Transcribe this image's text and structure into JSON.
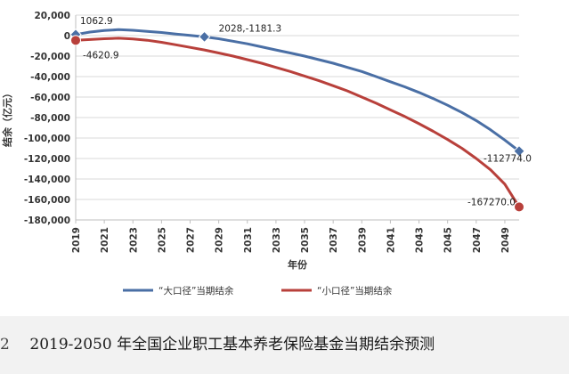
{
  "chart_data": {
    "type": "line",
    "xlabel": "年份",
    "ylabel": "结余（亿元）",
    "xlim": [
      2019,
      2050
    ],
    "ylim": [
      -180000,
      20000
    ],
    "yticks": [
      20000,
      0,
      -20000,
      -40000,
      -60000,
      -80000,
      -100000,
      -120000,
      -140000,
      -160000,
      -180000
    ],
    "ytick_labels": [
      "20,000",
      "0",
      "-20,000",
      "-40,000",
      "-60,000",
      "-80,000",
      "-100,000",
      "-120,000",
      "-140,000",
      "-160,000",
      "-180,000"
    ],
    "xticks": [
      2019,
      2021,
      2023,
      2025,
      2027,
      2029,
      2031,
      2033,
      2035,
      2037,
      2039,
      2041,
      2043,
      2045,
      2047,
      2049
    ],
    "xtick_labels": [
      "2019",
      "2021",
      "2023",
      "2025",
      "2027",
      "2029",
      "2031",
      "2033",
      "2035",
      "2037",
      "2039",
      "2041",
      "2043",
      "2045",
      "2047",
      "2049"
    ],
    "grid": true,
    "legend_position": "bottom",
    "series": [
      {
        "name": "“大口径”当期结余",
        "color": "#4a6fa5",
        "x": [
          2019,
          2020,
          2021,
          2022,
          2023,
          2024,
          2025,
          2026,
          2027,
          2028,
          2029,
          2030,
          2031,
          2032,
          2033,
          2034,
          2035,
          2036,
          2037,
          2038,
          2039,
          2040,
          2041,
          2042,
          2043,
          2044,
          2045,
          2046,
          2047,
          2048,
          2049,
          2050
        ],
        "values": [
          1062.9,
          3500,
          5000,
          5800,
          5200,
          4200,
          3000,
          1500,
          200,
          -1181.3,
          -3000,
          -5500,
          -8000,
          -11000,
          -14000,
          -17000,
          -20000,
          -23500,
          -27000,
          -31000,
          -35000,
          -40000,
          -45000,
          -50000,
          -55500,
          -61500,
          -68000,
          -75000,
          -83000,
          -92000,
          -102000,
          -112774.0
        ]
      },
      {
        "name": "“小口径”当期结余",
        "color": "#b8403b",
        "x": [
          2019,
          2020,
          2021,
          2022,
          2023,
          2024,
          2025,
          2026,
          2027,
          2028,
          2029,
          2030,
          2031,
          2032,
          2033,
          2034,
          2035,
          2036,
          2037,
          2038,
          2039,
          2040,
          2041,
          2042,
          2043,
          2044,
          2045,
          2046,
          2047,
          2048,
          2049,
          2050
        ],
        "values": [
          -4620.9,
          -3800,
          -3000,
          -2500,
          -3200,
          -4500,
          -6500,
          -9000,
          -11500,
          -14000,
          -17000,
          -20000,
          -23500,
          -27000,
          -31000,
          -35000,
          -39500,
          -44000,
          -49000,
          -54000,
          -60000,
          -66000,
          -72500,
          -79000,
          -86000,
          -93500,
          -101500,
          -110000,
          -120000,
          -131000,
          -145000,
          -167270.0
        ]
      }
    ],
    "annotations": [
      {
        "series": 0,
        "x": 2019,
        "y": 1062.9,
        "text": "1062.9",
        "marker": "diamond"
      },
      {
        "series": 1,
        "x": 2019,
        "y": -4620.9,
        "text": "-4620.9",
        "marker": "circle"
      },
      {
        "series": 0,
        "x": 2028,
        "y": -1181.3,
        "text": "2028,-1181.3",
        "marker": "diamond"
      },
      {
        "series": 0,
        "x": 2050,
        "y": -112774.0,
        "text": "-112774.0",
        "marker": "diamond"
      },
      {
        "series": 1,
        "x": 2050,
        "y": -167270.0,
        "text": "-167270.0",
        "marker": "circle"
      }
    ]
  },
  "caption": {
    "number": "2",
    "text": "2019-2050 年全国企业职工基本养老保险基金当期结余预测"
  }
}
